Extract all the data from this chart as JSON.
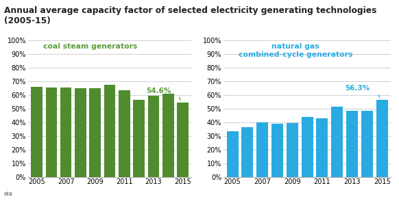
{
  "title": "Annual average capacity factor of selected electricity generating technologies (2005-15)",
  "title_fontsize": 8.8,
  "coal": {
    "label": "coal steam generators",
    "label_color": "#5a9e3a",
    "years": [
      2005,
      2006,
      2007,
      2008,
      2009,
      2010,
      2011,
      2012,
      2013,
      2014,
      2015
    ],
    "values": [
      0.66,
      0.653,
      0.655,
      0.65,
      0.65,
      0.676,
      0.633,
      0.565,
      0.596,
      0.608,
      0.546
    ],
    "bar_color": "#4e8c2e",
    "highlight_value": "54.6%",
    "highlight_color": "#5a9e3a"
  },
  "gas": {
    "label": "natural gas\ncombined-cycle generators",
    "label_color": "#29abe2",
    "years": [
      2005,
      2006,
      2007,
      2008,
      2009,
      2010,
      2011,
      2012,
      2013,
      2014,
      2015
    ],
    "values": [
      0.335,
      0.365,
      0.4,
      0.39,
      0.395,
      0.44,
      0.43,
      0.515,
      0.482,
      0.482,
      0.563
    ],
    "bar_color": "#29abe2",
    "highlight_value": "56.3%",
    "highlight_color": "#29abe2"
  },
  "ylim": [
    0,
    1.0
  ],
  "yticks": [
    0.0,
    0.1,
    0.2,
    0.3,
    0.4,
    0.5,
    0.6,
    0.7,
    0.8,
    0.9,
    1.0
  ],
  "background_color": "#ffffff",
  "grid_color": "#d0d0d0",
  "xtick_labels": [
    "2005",
    "2007",
    "2009",
    "2011",
    "2013",
    "2015"
  ]
}
